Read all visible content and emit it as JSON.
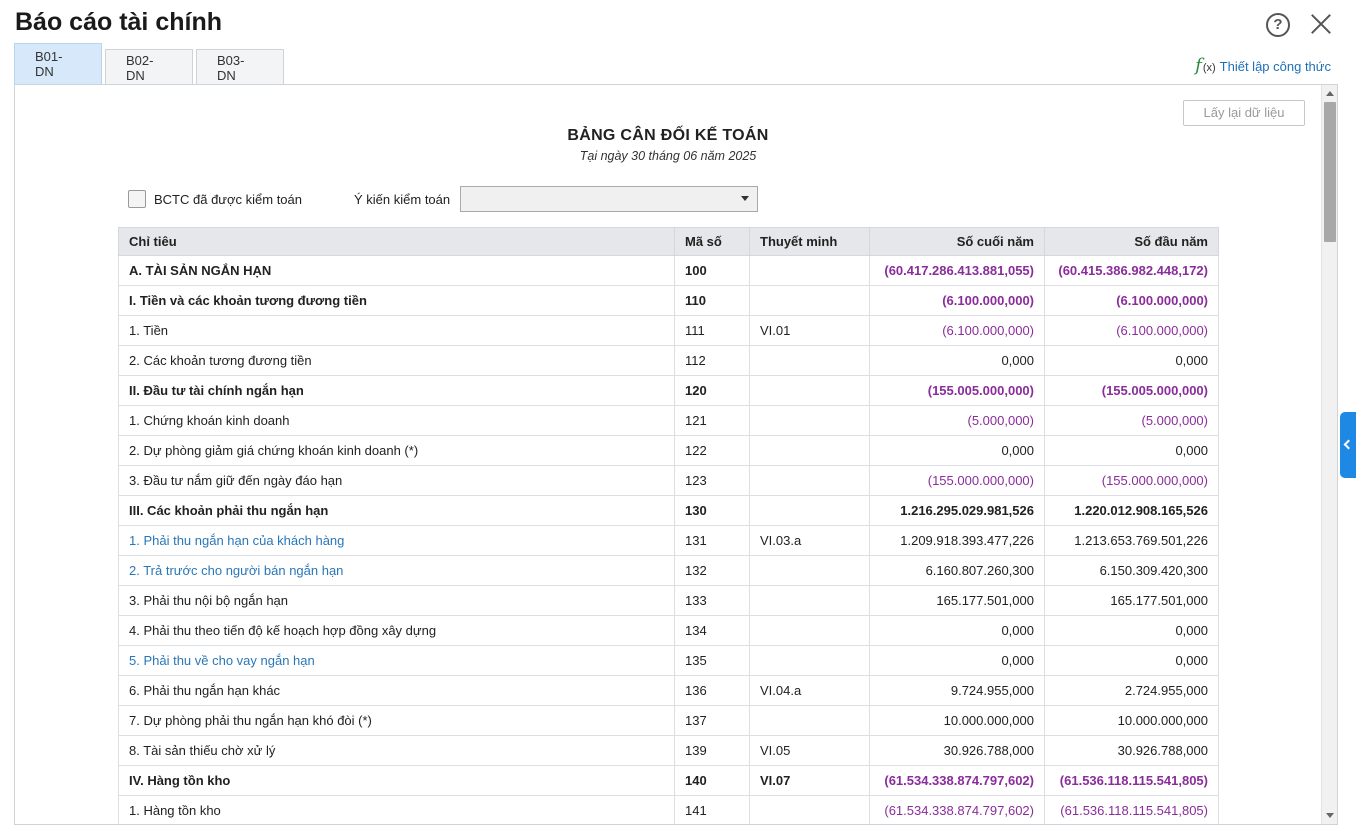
{
  "window": {
    "title": "Báo cáo tài chính",
    "help_label": "?"
  },
  "tabs": [
    {
      "label": "B01-DN",
      "active": true
    },
    {
      "label": "B02-DN",
      "active": false
    },
    {
      "label": "B03-DN",
      "active": false
    }
  ],
  "formula_link": {
    "fx": "f",
    "sub": "(x)",
    "label": "Thiết lập công thức"
  },
  "report": {
    "refresh_label": "Lấy lại dữ liệu",
    "title": "BẢNG CÂN ĐỐI KẾ TOÁN",
    "date": "Tại ngày 30 tháng 06 năm 2025",
    "audited_label": "BCTC đã được kiểm toán",
    "audited_checked": false,
    "opinion_label": "Ý kiến kiểm toán",
    "opinion_value": ""
  },
  "table": {
    "headers": [
      "Chỉ tiêu",
      "Mã số",
      "Thuyết minh",
      "Số cuối năm",
      "Số đầu năm"
    ],
    "rows": [
      {
        "label": "A. TÀI SẢN NGẮN HẠN",
        "code": "100",
        "note": "",
        "end": "(60.417.286.413.881,055)",
        "start": "(60.415.386.982.448,172)",
        "bold": true,
        "link": false,
        "neg": true
      },
      {
        "label": "I. Tiền và các khoản tương đương tiền",
        "code": "110",
        "note": "",
        "end": "(6.100.000,000)",
        "start": "(6.100.000,000)",
        "bold": true,
        "link": false,
        "neg": true
      },
      {
        "label": "1. Tiền",
        "code": "111",
        "note": "VI.01",
        "end": "(6.100.000,000)",
        "start": "(6.100.000,000)",
        "bold": false,
        "link": false,
        "neg": true
      },
      {
        "label": "2. Các khoản tương đương tiền",
        "code": "112",
        "note": "",
        "end": "0,000",
        "start": "0,000",
        "bold": false,
        "link": false,
        "neg": false
      },
      {
        "label": "II. Đầu tư tài chính ngắn hạn",
        "code": "120",
        "note": "",
        "end": "(155.005.000,000)",
        "start": "(155.005.000,000)",
        "bold": true,
        "link": false,
        "neg": true
      },
      {
        "label": "1. Chứng khoán kinh doanh",
        "code": "121",
        "note": "",
        "end": "(5.000,000)",
        "start": "(5.000,000)",
        "bold": false,
        "link": false,
        "neg": true
      },
      {
        "label": "2. Dự phòng giảm giá chứng khoán kinh doanh (*)",
        "code": "122",
        "note": "",
        "end": "0,000",
        "start": "0,000",
        "bold": false,
        "link": false,
        "neg": false
      },
      {
        "label": "3. Đầu tư nắm giữ đến ngày đáo hạn",
        "code": "123",
        "note": "",
        "end": "(155.000.000,000)",
        "start": "(155.000.000,000)",
        "bold": false,
        "link": false,
        "neg": true
      },
      {
        "label": "III. Các khoản phải thu ngắn hạn",
        "code": "130",
        "note": "",
        "end": "1.216.295.029.981,526",
        "start": "1.220.012.908.165,526",
        "bold": true,
        "link": false,
        "neg": false
      },
      {
        "label": "1. Phải thu ngắn hạn của khách hàng",
        "code": "131",
        "note": "VI.03.a",
        "end": "1.209.918.393.477,226",
        "start": "1.213.653.769.501,226",
        "bold": false,
        "link": true,
        "neg": false
      },
      {
        "label": "2. Trả trước cho người bán ngắn hạn",
        "code": "132",
        "note": "",
        "end": "6.160.807.260,300",
        "start": "6.150.309.420,300",
        "bold": false,
        "link": true,
        "neg": false
      },
      {
        "label": "3. Phải thu nội bộ ngắn hạn",
        "code": "133",
        "note": "",
        "end": "165.177.501,000",
        "start": "165.177.501,000",
        "bold": false,
        "link": false,
        "neg": false
      },
      {
        "label": "4. Phải thu theo tiến độ kế hoạch hợp đồng xây dựng",
        "code": "134",
        "note": "",
        "end": "0,000",
        "start": "0,000",
        "bold": false,
        "link": false,
        "neg": false
      },
      {
        "label": "5. Phải thu về cho vay ngắn hạn",
        "code": "135",
        "note": "",
        "end": "0,000",
        "start": "0,000",
        "bold": false,
        "link": true,
        "neg": false
      },
      {
        "label": "6. Phải thu ngắn hạn khác",
        "code": "136",
        "note": "VI.04.a",
        "end": "9.724.955,000",
        "start": "2.724.955,000",
        "bold": false,
        "link": false,
        "neg": false
      },
      {
        "label": "7. Dự phòng phải thu ngắn hạn khó đòi (*)",
        "code": "137",
        "note": "",
        "end": "10.000.000,000",
        "start": "10.000.000,000",
        "bold": false,
        "link": false,
        "neg": false
      },
      {
        "label": "8. Tài sản thiếu chờ xử lý",
        "code": "139",
        "note": "VI.05",
        "end": "30.926.788,000",
        "start": "30.926.788,000",
        "bold": false,
        "link": false,
        "neg": false
      },
      {
        "label": "IV. Hàng tồn kho",
        "code": "140",
        "note": "VI.07",
        "end": "(61.534.338.874.797,602)",
        "start": "(61.536.118.115.541,805)",
        "bold": true,
        "link": false,
        "neg": true
      },
      {
        "label": "1. Hàng tồn kho",
        "code": "141",
        "note": "",
        "end": "(61.534.338.874.797,602)",
        "start": "(61.536.118.115.541,805)",
        "bold": false,
        "link": false,
        "neg": true
      }
    ]
  },
  "colors": {
    "accent": "#1e88e5",
    "link": "#2a77b8",
    "negative": "#8a2c9b",
    "fx": "#2e8b3e"
  },
  "icons": {
    "help": "help-circle-icon",
    "close": "close-icon",
    "formula": "formula-fx-icon",
    "side": "chevron-left-icon"
  }
}
